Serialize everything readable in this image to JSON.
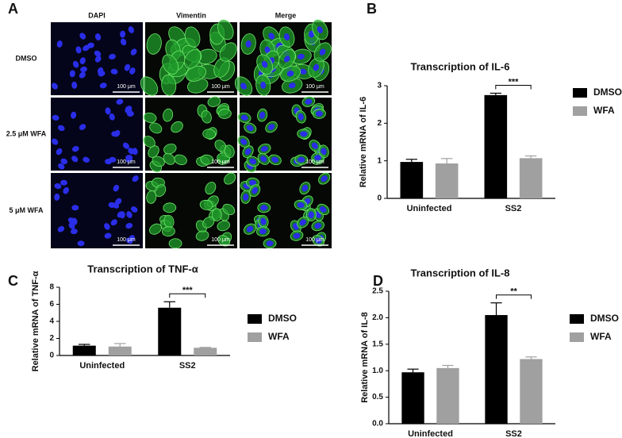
{
  "panel_a": {
    "label": "A",
    "columns": [
      "DAPI",
      "Vimentin",
      "Merge"
    ],
    "rows": [
      "DMSO",
      "2.5 μM WFA",
      "5 μM WFA"
    ],
    "scale_bar": "100 μm"
  },
  "chart_data": [
    {
      "type": "bar",
      "panel_label": "B",
      "title": "Transcription of IL-6",
      "y_label": "Relative mRNA of IL-6",
      "categories": [
        "Uninfected",
        "SS2"
      ],
      "series": [
        {
          "name": "DMSO",
          "color": "#000000",
          "values": [
            0.97,
            2.75
          ],
          "errors": [
            0.07,
            0.05
          ]
        },
        {
          "name": "WFA",
          "color": "#a0a0a0",
          "values": [
            0.93,
            1.07
          ],
          "errors": [
            0.13,
            0.06
          ]
        }
      ],
      "ylim": [
        0,
        3
      ],
      "yticks": [
        0,
        1,
        2,
        3
      ],
      "annotation": "***"
    },
    {
      "type": "bar",
      "panel_label": "C",
      "title": "Transcription of TNF-α",
      "y_label": "Relative mRNA of TNF-α",
      "categories": [
        "Uninfected",
        "SS2"
      ],
      "series": [
        {
          "name": "DMSO",
          "color": "#000000",
          "values": [
            1.15,
            5.6
          ],
          "errors": [
            0.15,
            0.7
          ]
        },
        {
          "name": "WFA",
          "color": "#a0a0a0",
          "values": [
            1.05,
            0.9
          ],
          "errors": [
            0.35,
            0.05
          ]
        }
      ],
      "ylim": [
        0,
        8
      ],
      "yticks": [
        0,
        2,
        4,
        6,
        8
      ],
      "annotation": "***"
    },
    {
      "type": "bar",
      "panel_label": "D",
      "title": "Transcription of IL-8",
      "y_label": "Relative mRNA of IL-8",
      "categories": [
        "Uninfected",
        "SS2"
      ],
      "series": [
        {
          "name": "DMSO",
          "color": "#000000",
          "values": [
            0.97,
            2.05
          ],
          "errors": [
            0.06,
            0.23
          ]
        },
        {
          "name": "WFA",
          "color": "#a0a0a0",
          "values": [
            1.05,
            1.22
          ],
          "errors": [
            0.05,
            0.04
          ]
        }
      ],
      "ylim": [
        0,
        2.5
      ],
      "yticks": [
        {
          "value": 0,
          "label": "0.0"
        },
        {
          "value": 0.5,
          "label": "0.5"
        },
        {
          "value": 1,
          "label": "1.0"
        },
        {
          "value": 1.5,
          "label": "1.5"
        },
        {
          "value": 2,
          "label": "2.0"
        },
        {
          "value": 2.5,
          "label": "2.5"
        }
      ],
      "annotation": "**"
    }
  ]
}
